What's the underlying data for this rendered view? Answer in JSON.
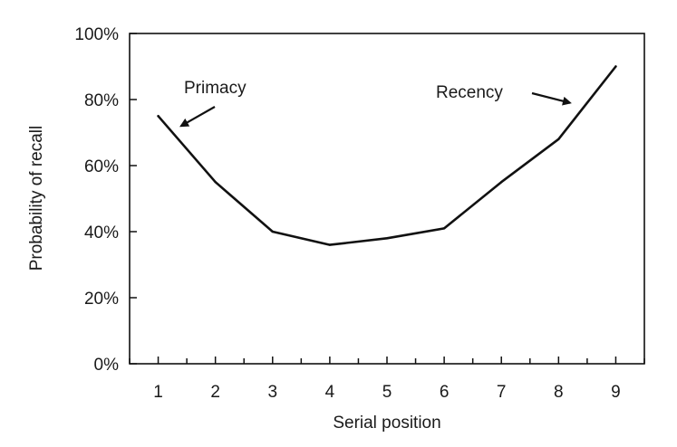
{
  "chart_data": {
    "type": "line",
    "title": "",
    "xlabel": "Serial position",
    "ylabel": "Probability of recall",
    "x": [
      1,
      2,
      3,
      4,
      5,
      6,
      7,
      8,
      9
    ],
    "x_tick_labels": [
      "1",
      "2",
      "3",
      "4",
      "5",
      "6",
      "7",
      "8",
      "9"
    ],
    "xlim": [
      0.5,
      9.5
    ],
    "y_ticks": [
      0,
      20,
      40,
      60,
      80,
      100
    ],
    "y_tick_labels": [
      "0%",
      "20%",
      "40%",
      "60%",
      "80%",
      "100%"
    ],
    "ylim": [
      0,
      100
    ],
    "series": [
      {
        "values": [
          75,
          55,
          40,
          36,
          38,
          41,
          55,
          68,
          90
        ]
      }
    ],
    "annotations": [
      {
        "text": "Primacy",
        "target_x": 1.4,
        "target_y": 72
      },
      {
        "text": "Recency",
        "target_x": 8.2,
        "target_y": 79
      }
    ],
    "grid": false,
    "line_color": "#111111"
  }
}
